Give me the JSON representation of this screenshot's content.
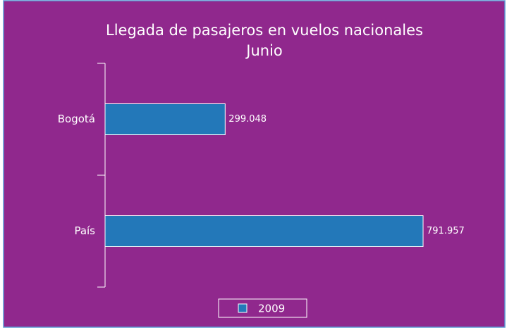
{
  "chart_data": {
    "type": "bar",
    "orientation": "horizontal",
    "title": "Llegada de pasajeros en vuelos nacionales",
    "subtitle": "Junio",
    "categories": [
      "Bogotá",
      "País"
    ],
    "series": [
      {
        "name": "2009",
        "color": "#2378b9",
        "values": [
          299048,
          791957
        ],
        "value_labels": [
          "299.048",
          "791.957"
        ]
      }
    ],
    "legend": "bottom"
  }
}
